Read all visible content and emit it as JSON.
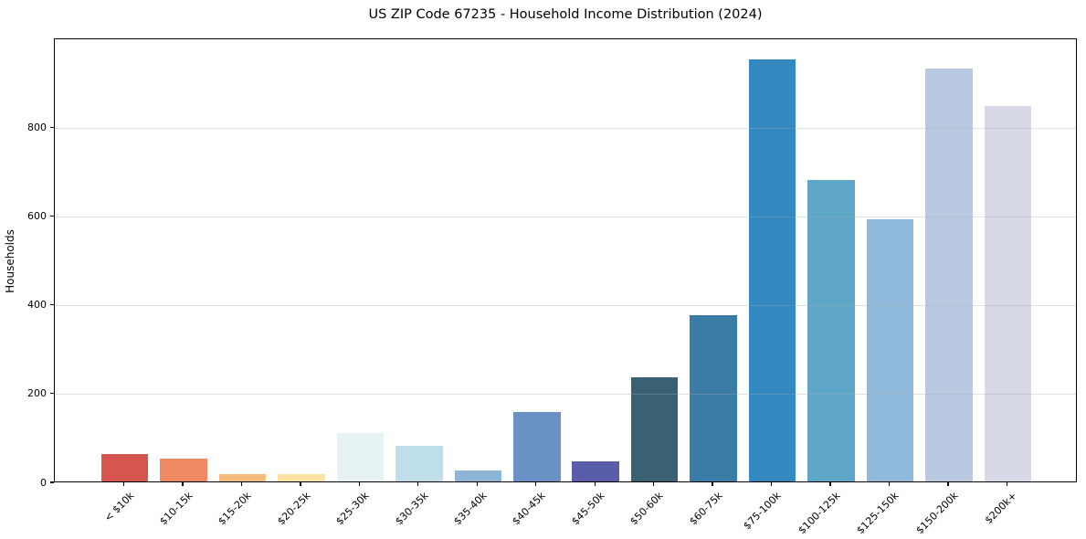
{
  "figure": {
    "title": "US ZIP Code 67235 - Household Income Distribution (2024)"
  },
  "chart_data": {
    "type": "bar",
    "title": "US ZIP Code 67235 - Household Income Distribution (2024)",
    "xlabel": "",
    "ylabel": "Households",
    "categories": [
      "< $10k",
      "$10-15k",
      "$15-20k",
      "$20-25k",
      "$25-30k",
      "$30-35k",
      "$35-40k",
      "$40-45k",
      "$45-50k",
      "$50-60k",
      "$60-75k",
      "$75-100k",
      "$100-125k",
      "$125-150k",
      "$150-200k",
      "$200k+"
    ],
    "values": [
      62,
      52,
      16,
      16,
      110,
      80,
      25,
      156,
      45,
      235,
      375,
      950,
      680,
      590,
      930,
      845
    ],
    "bar_colors": [
      "#d6554f",
      "#f08a62",
      "#f6bc7c",
      "#fce3a2",
      "#e6f2f3",
      "#bfe0ea",
      "#8cb5d7",
      "#6a91c4",
      "#5a5daa",
      "#3a6073",
      "#3a7ca5",
      "#3489c1",
      "#5fa7c9",
      "#90badb",
      "#b9c9e2",
      "#d7d9e7"
    ],
    "ylim": [
      0,
      1000
    ],
    "yticks": [
      0,
      200,
      400,
      600,
      800
    ],
    "grid": "horizontal",
    "legend": "none",
    "x_tick_rotation_deg": 45,
    "axis_color": "#000000"
  }
}
